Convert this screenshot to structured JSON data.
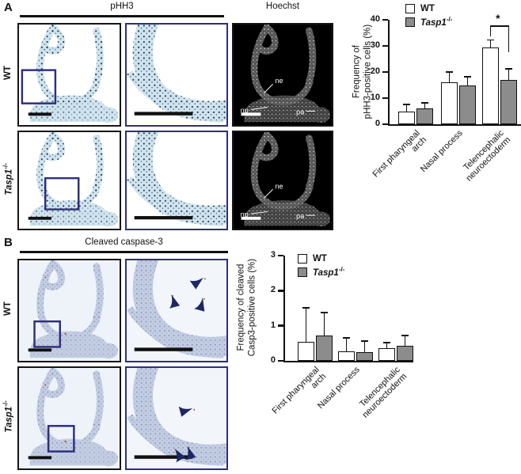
{
  "panel_a": {
    "label": "A",
    "header_phh3": "pHH3",
    "header_hoechst": "Hoechst",
    "row_wt": "WT",
    "row_ko_base": "Tasp1",
    "row_ko_sup": "-/-",
    "hoechst_labels": {
      "ne": "ne",
      "np": "np",
      "pa": "pa"
    }
  },
  "panel_b": {
    "label": "B",
    "header": "Cleaved caspase-3",
    "row_wt": "WT",
    "row_ko_base": "Tasp1",
    "row_ko_sup": "-/-"
  },
  "legend": {
    "wt": "WT",
    "ko_base": "Tasp1",
    "ko_sup": "-/-"
  },
  "colors": {
    "navy": "#2e2e7a",
    "bar_gray": "#8c8c8c",
    "bar_white": "#ffffff",
    "axis": "#111111"
  },
  "chart_data": [
    {
      "id": "phh3",
      "type": "bar",
      "ylabel_lines": [
        "Frequency of",
        "pHH3-positive cells (%)"
      ],
      "ylim": [
        0,
        40
      ],
      "yticks": [
        0,
        10,
        20,
        30,
        40
      ],
      "categories": [
        "First pharyngeal\narch",
        "Nasal process",
        "Telencephalic\nneuroectoderm"
      ],
      "series": [
        {
          "name": "WT",
          "fill": "#ffffff",
          "values": [
            5.0,
            16.1,
            29.3
          ],
          "errors": [
            2.6,
            4.0,
            3.0
          ]
        },
        {
          "name": "Tasp1-/-",
          "fill": "#8c8c8c",
          "values": [
            6.0,
            14.8,
            17.0
          ],
          "errors": [
            2.2,
            3.3,
            4.3
          ]
        }
      ],
      "legend_position": "top-left-inside",
      "grid": false,
      "significance": {
        "group": 2,
        "label": "*"
      }
    },
    {
      "id": "casp3",
      "type": "bar",
      "ylabel_lines": [
        "Frequency of cleaved",
        "Casp3-positive cells (%)"
      ],
      "ylim": [
        0,
        3
      ],
      "yticks": [
        0,
        1,
        2,
        3
      ],
      "categories": [
        "First pharyngeal\narch",
        "Nasal process",
        "Telencephalic\nneuroectoderm"
      ],
      "series": [
        {
          "name": "WT",
          "fill": "#ffffff",
          "values": [
            0.55,
            0.26,
            0.35
          ],
          "errors": [
            0.97,
            0.39,
            0.17
          ]
        },
        {
          "name": "Tasp1-/-",
          "fill": "#8c8c8c",
          "values": [
            0.72,
            0.24,
            0.44
          ],
          "errors": [
            0.65,
            0.32,
            0.28
          ]
        }
      ],
      "legend_position": "top-left-inside",
      "grid": false
    }
  ]
}
